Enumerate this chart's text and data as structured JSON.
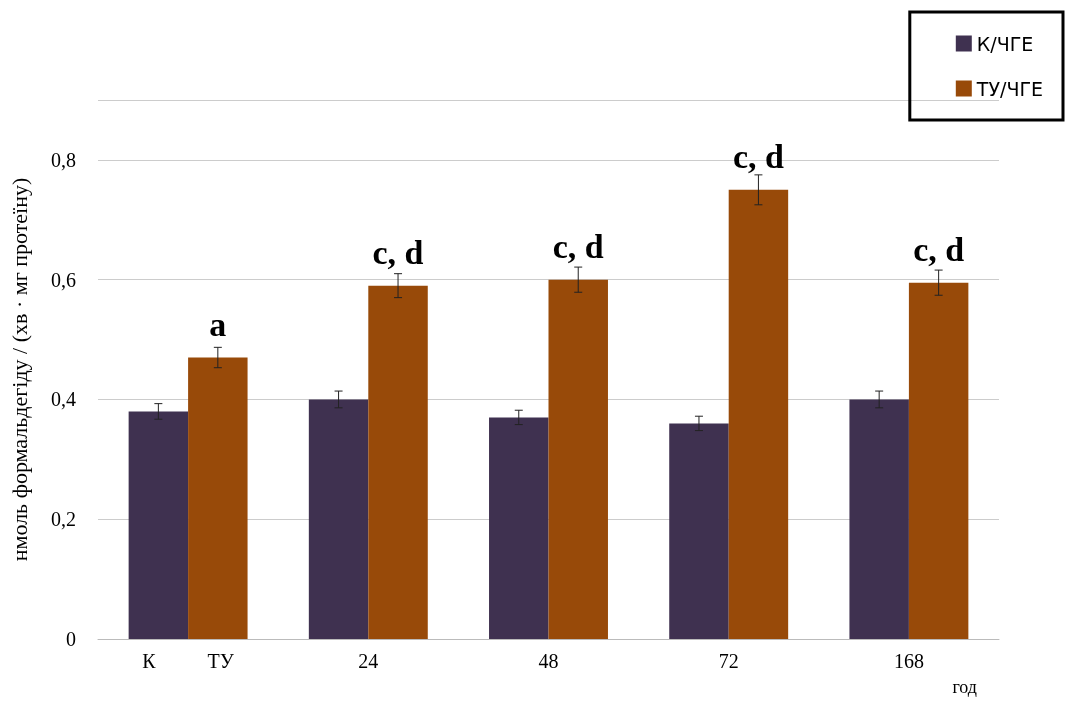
{
  "chart_data": {
    "type": "bar",
    "ylabel": "нмоль формальдегіду / (хв · мг протеїну)",
    "xlabel": "год",
    "categories": [
      "К ТУ",
      "24",
      "48",
      "72",
      "168"
    ],
    "series": [
      {
        "name": "К/ЧГЕ",
        "color": "#3f3150",
        "values": [
          0.38,
          0.4,
          0.37,
          0.36,
          0.4
        ],
        "errors": [
          0.013,
          0.014,
          0.012,
          0.012,
          0.014
        ]
      },
      {
        "name": "ТУ/ЧГЕ",
        "color": "#984a09",
        "values": [
          0.47,
          0.59,
          0.6,
          0.75,
          0.595
        ],
        "errors": [
          0.017,
          0.02,
          0.021,
          0.025,
          0.021
        ]
      }
    ],
    "annotations": [
      {
        "text": "a",
        "x": "К ТУ",
        "y": 0.47
      },
      {
        "text": "c, d",
        "x": "24",
        "y": 0.59
      },
      {
        "text": "c, d",
        "x": "48",
        "y": 0.6
      },
      {
        "text": "c, d",
        "x": "72",
        "y": 0.75
      },
      {
        "text": "c, d",
        "x": "168",
        "y": 0.595
      }
    ],
    "ylim": [
      0,
      0.9
    ],
    "yticks": [
      0,
      {
        "value": 0.2,
        "label": "0,2"
      },
      {
        "value": 0.4,
        "label": "0,4"
      },
      {
        "value": 0.6,
        "label": "0,6"
      },
      {
        "value": 0.8,
        "label": "0,8"
      }
    ],
    "grid": "y",
    "legend": "top right"
  }
}
